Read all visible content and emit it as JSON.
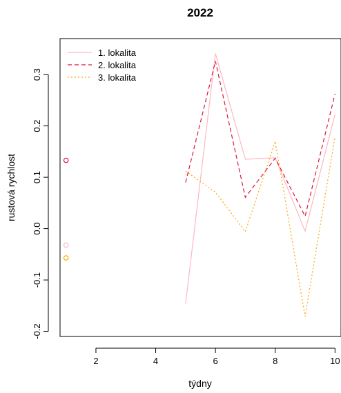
{
  "chart_data": {
    "type": "line",
    "title": "2022",
    "xlabel": "týdny",
    "ylabel": "rustová rychlost",
    "xlim": [
      0.8,
      10.2
    ],
    "ylim": [
      -0.21,
      0.37
    ],
    "xticks": [
      2,
      4,
      6,
      8,
      10
    ],
    "xtick_labels": [
      "2",
      "4",
      "6",
      "8",
      "10"
    ],
    "yticks": [
      -0.2,
      -0.1,
      0.0,
      0.1,
      0.2,
      0.3
    ],
    "ytick_labels": [
      "-0.2",
      "-0.1",
      "0.0",
      "0.1",
      "0.2",
      "0.3"
    ],
    "grid": false,
    "legend_position": "top-left",
    "x": [
      1,
      2,
      3,
      4,
      5,
      6,
      7,
      8,
      9,
      10
    ],
    "series": [
      {
        "name": "1. lokalita",
        "color": "#ffb6c1",
        "line_style": "solid",
        "values": [
          -0.032,
          null,
          null,
          null,
          -0.146,
          0.341,
          0.135,
          0.138,
          -0.005,
          0.222
        ]
      },
      {
        "name": "2. lokalita",
        "color": "#dc143c",
        "line_style": "dashed",
        "values": [
          0.133,
          null,
          null,
          null,
          0.09,
          0.326,
          0.061,
          0.137,
          0.024,
          0.262
        ]
      },
      {
        "name": "3. lokalita",
        "color": "#ffa500",
        "line_style": "dotted",
        "values": [
          -0.057,
          null,
          null,
          null,
          0.112,
          0.071,
          -0.006,
          0.17,
          -0.171,
          0.179
        ]
      }
    ]
  }
}
